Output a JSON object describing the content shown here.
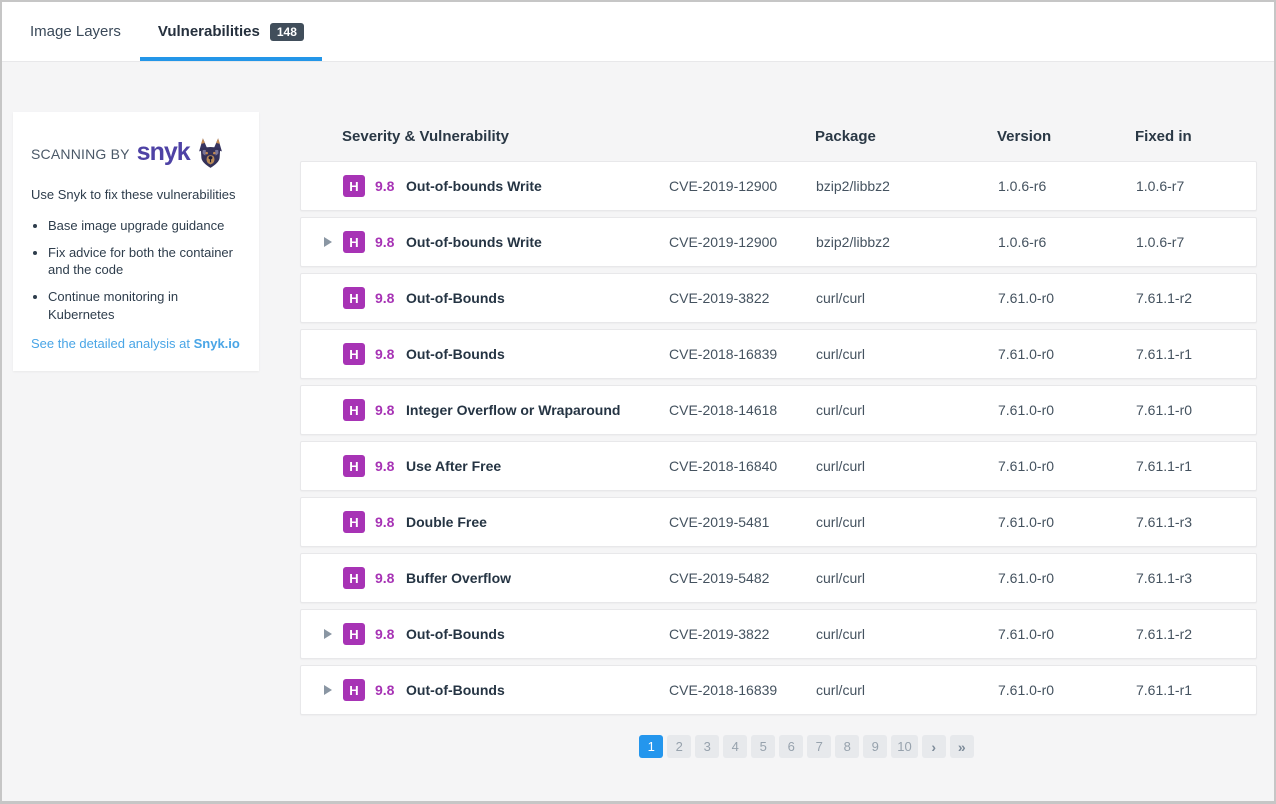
{
  "tabs": [
    {
      "label": "Image Layers",
      "active": false
    },
    {
      "label": "Vulnerabilities",
      "count": "148",
      "active": true
    }
  ],
  "sidebar": {
    "scanning_by": "SCANNING BY",
    "brand": "snyk",
    "dog_icon": "snyk-doberman-mascot",
    "intro": "Use Snyk to fix these vulnerabilities",
    "bullets": [
      "Base image upgrade guidance",
      "Fix advice for both the container and the code",
      "Continue monitoring in Kubernetes"
    ],
    "link_prefix": "See the detailed analysis at ",
    "link_brand": "Snyk.io"
  },
  "table": {
    "headers": {
      "severity": "Severity & Vulnerability",
      "package": "Package",
      "version": "Version",
      "fixed_in": "Fixed in"
    },
    "rows": [
      {
        "expandable": false,
        "severity": "H",
        "score": "9.8",
        "name": "Out-of-bounds Write",
        "cve": "CVE-2019-12900",
        "package": "bzip2/libbz2",
        "version": "1.0.6-r6",
        "fixed_in": "1.0.6-r7"
      },
      {
        "expandable": true,
        "severity": "H",
        "score": "9.8",
        "name": "Out-of-bounds Write",
        "cve": "CVE-2019-12900",
        "package": "bzip2/libbz2",
        "version": "1.0.6-r6",
        "fixed_in": "1.0.6-r7"
      },
      {
        "expandable": false,
        "severity": "H",
        "score": "9.8",
        "name": "Out-of-Bounds",
        "cve": "CVE-2019-3822",
        "package": "curl/curl",
        "version": "7.61.0-r0",
        "fixed_in": "7.61.1-r2"
      },
      {
        "expandable": false,
        "severity": "H",
        "score": "9.8",
        "name": "Out-of-Bounds",
        "cve": "CVE-2018-16839",
        "package": "curl/curl",
        "version": "7.61.0-r0",
        "fixed_in": "7.61.1-r1"
      },
      {
        "expandable": false,
        "severity": "H",
        "score": "9.8",
        "name": "Integer Overflow or Wraparound",
        "cve": "CVE-2018-14618",
        "package": "curl/curl",
        "version": "7.61.0-r0",
        "fixed_in": "7.61.1-r0"
      },
      {
        "expandable": false,
        "severity": "H",
        "score": "9.8",
        "name": "Use After Free",
        "cve": "CVE-2018-16840",
        "package": "curl/curl",
        "version": "7.61.0-r0",
        "fixed_in": "7.61.1-r1"
      },
      {
        "expandable": false,
        "severity": "H",
        "score": "9.8",
        "name": "Double Free",
        "cve": "CVE-2019-5481",
        "package": "curl/curl",
        "version": "7.61.0-r0",
        "fixed_in": "7.61.1-r3"
      },
      {
        "expandable": false,
        "severity": "H",
        "score": "9.8",
        "name": "Buffer Overflow",
        "cve": "CVE-2019-5482",
        "package": "curl/curl",
        "version": "7.61.0-r0",
        "fixed_in": "7.61.1-r3"
      },
      {
        "expandable": true,
        "severity": "H",
        "score": "9.8",
        "name": "Out-of-Bounds",
        "cve": "CVE-2019-3822",
        "package": "curl/curl",
        "version": "7.61.0-r0",
        "fixed_in": "7.61.1-r2"
      },
      {
        "expandable": true,
        "severity": "H",
        "score": "9.8",
        "name": "Out-of-Bounds",
        "cve": "CVE-2018-16839",
        "package": "curl/curl",
        "version": "7.61.0-r0",
        "fixed_in": "7.61.1-r1"
      }
    ]
  },
  "pagination": {
    "pages": [
      "1",
      "2",
      "3",
      "4",
      "5",
      "6",
      "7",
      "8",
      "9",
      "10"
    ],
    "active_page": "1",
    "next_label": "›",
    "last_label": "»"
  },
  "colors": {
    "severity_high": "#a733b5",
    "active_tab_underline": "#2396e8",
    "pagination_active": "#2496ed",
    "count_badge_bg": "#414e5b",
    "link_blue": "#49a5e6",
    "snyk_purple": "#4e42a5",
    "page_background": "#f5f5f6"
  }
}
